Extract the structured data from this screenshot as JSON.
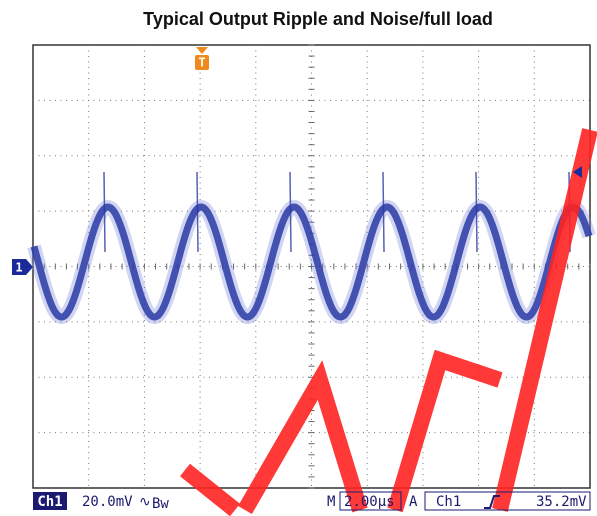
{
  "title": "Typical Output Ripple and Noise/full load",
  "status": {
    "channel": "Ch1",
    "scale": "20.0mV",
    "coupling": "∿",
    "bw": "Bw",
    "timebase_prefix": "M",
    "timebase": "2.00µs",
    "trigger_mode": "A",
    "trigger_channel": "Ch1",
    "trigger_level": "35.2mV"
  },
  "markers": {
    "trigger": "T",
    "channel": "1"
  }
}
